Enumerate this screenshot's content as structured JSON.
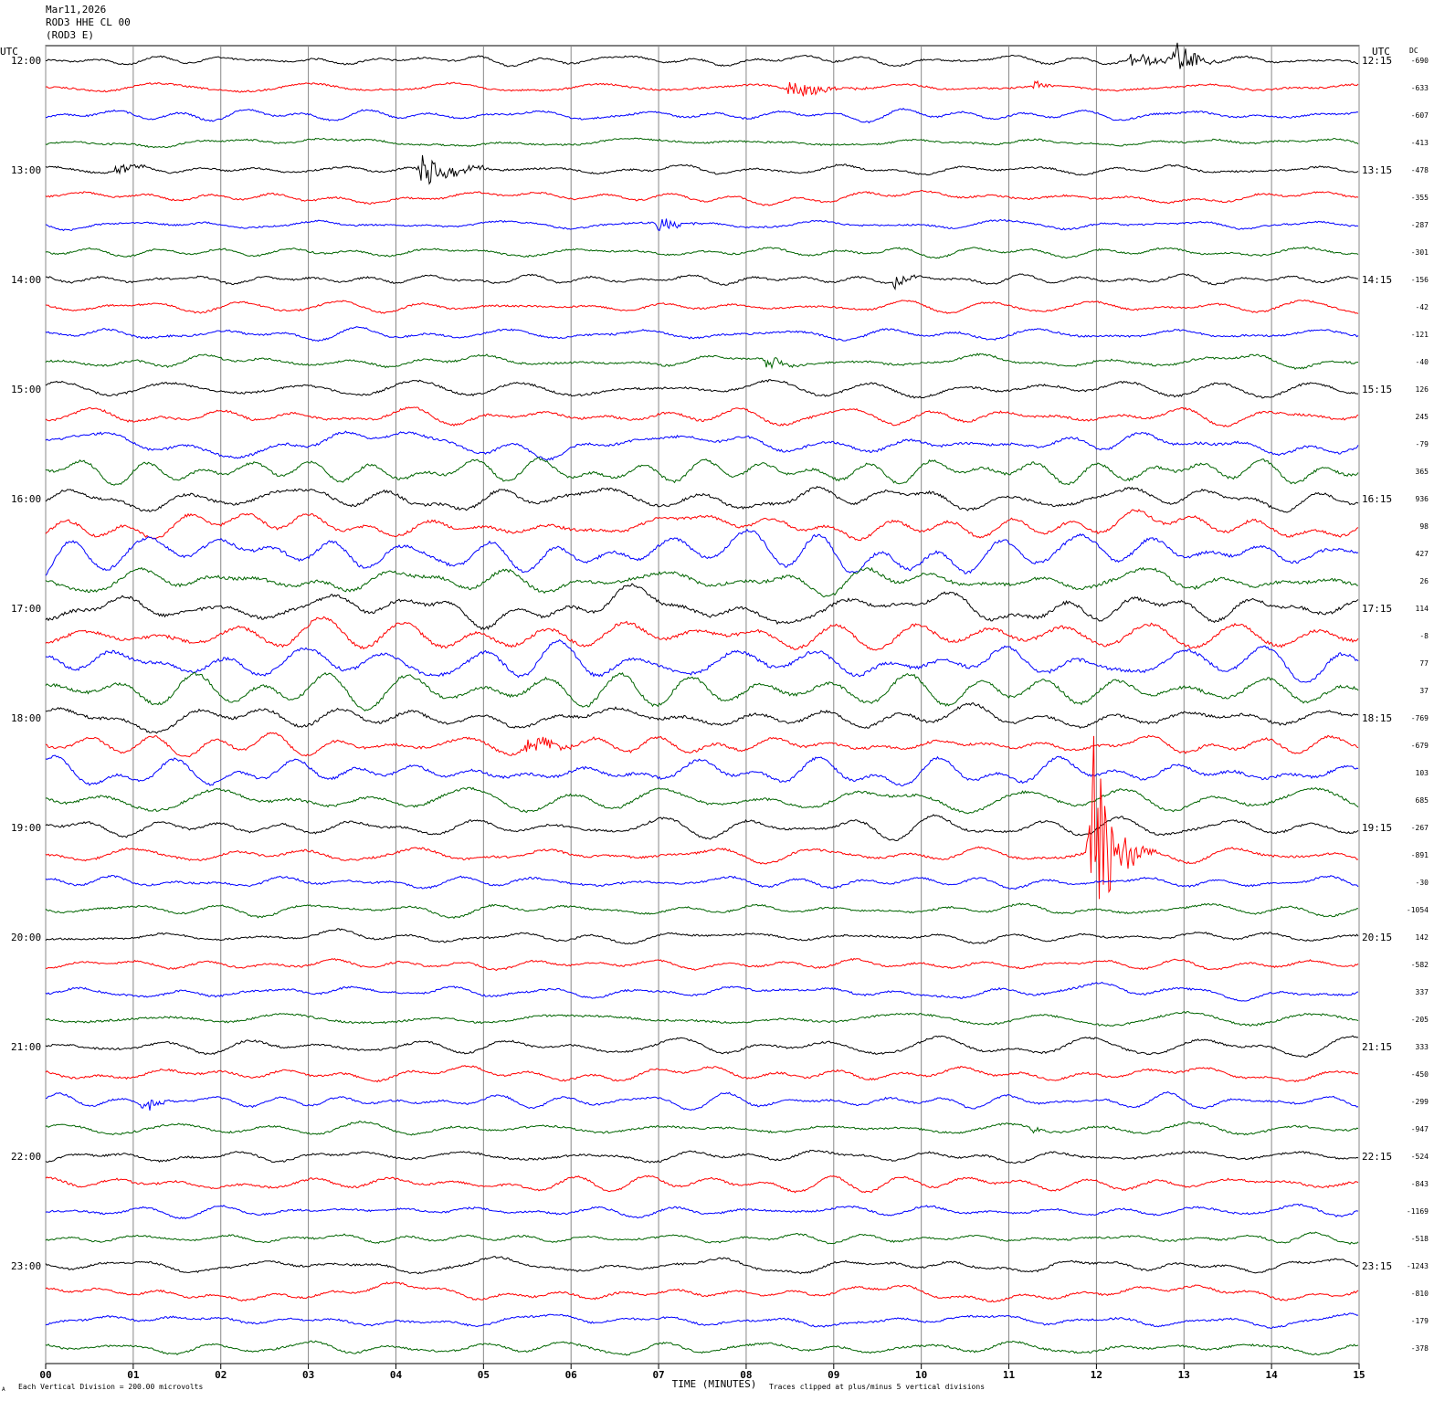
{
  "header": {
    "date": "Mar11,2026",
    "station": "ROD3 HHE CL 00",
    "station_alt": "(ROD3 E)"
  },
  "labels": {
    "utc_left": "UTC",
    "utc_right": "UTC",
    "dc": "DC",
    "xlabel": "TIME (MINUTES)",
    "scale_note": "Each Vertical Division =  200.00 microvolts",
    "clip_note": "Traces clipped at plus/minus 5 vertical divisions",
    "corner_mark": "A"
  },
  "chart_data": {
    "type": "line",
    "title": "",
    "xlabel": "TIME (MINUTES)",
    "ylabel": "",
    "xlim": [
      0,
      15
    ],
    "x_ticks": [
      "00",
      "01",
      "02",
      "03",
      "04",
      "05",
      "06",
      "07",
      "08",
      "09",
      "10",
      "11",
      "12",
      "13",
      "14",
      "15"
    ],
    "grid": "vertical lines each minute",
    "trace_colors": [
      "#000000",
      "#ff0000",
      "#0000ff",
      "#006400"
    ],
    "left_hour_labels": [
      "12:00",
      "13:00",
      "14:00",
      "15:00",
      "16:00",
      "17:00",
      "18:00",
      "19:00",
      "20:00",
      "21:00",
      "22:00",
      "23:00"
    ],
    "right_hour_labels": [
      "12:15",
      "13:15",
      "14:15",
      "15:15",
      "16:15",
      "17:15",
      "18:15",
      "19:15",
      "20:15",
      "21:15",
      "22:15",
      "23:15"
    ],
    "dc_offsets": [
      "-690",
      "-633",
      "-607",
      "-413",
      "-478",
      "-355",
      "-287",
      "-301",
      "-156",
      "-42",
      "-121",
      "-40",
      "126",
      "245",
      "-79",
      "365",
      "936",
      "98",
      "427",
      "26",
      "114",
      "-8",
      "77",
      "37",
      "-769",
      "-679",
      "103",
      "685",
      "-267",
      "-891",
      "-30",
      "-1054",
      "142",
      "-582",
      "337",
      "-205",
      "333",
      "-450",
      "-299",
      "-947",
      "-524",
      "-843",
      "-1169",
      "-518",
      "-1243",
      "-810",
      "-179",
      "-378"
    ],
    "trace_amplitude": [
      1,
      1,
      1,
      1,
      1,
      1,
      1,
      1,
      1.2,
      1.2,
      1.4,
      1.6,
      1.8,
      2,
      2.5,
      2.8,
      3,
      3.2,
      3.5,
      3.8,
      4,
      4,
      4,
      3.6,
      3,
      2.6,
      2.8,
      2.6,
      2,
      1.8,
      1.5,
      1.3,
      1.2,
      1.2,
      1.4,
      1.6,
      1.6,
      1.4,
      1.4,
      1.4,
      1.5,
      1.8,
      1.4,
      1.2,
      1.5,
      1.5,
      1.5,
      1.5
    ],
    "events": [
      {
        "trace": 0,
        "x": 12.9,
        "amplitude": 22,
        "duration": 0.5
      },
      {
        "trace": 0,
        "x": 12.4,
        "amplitude": 8,
        "duration": 0.9
      },
      {
        "trace": 1,
        "x": 8.5,
        "amplitude": 12,
        "duration": 0.7
      },
      {
        "trace": 1,
        "x": 11.3,
        "amplitude": 6,
        "duration": 0.3
      },
      {
        "trace": 4,
        "x": 4.3,
        "amplitude": 18,
        "duration": 0.8
      },
      {
        "trace": 4,
        "x": 0.8,
        "amplitude": 8,
        "duration": 0.4
      },
      {
        "trace": 6,
        "x": 7.0,
        "amplitude": 10,
        "duration": 0.5
      },
      {
        "trace": 8,
        "x": 9.7,
        "amplitude": 8,
        "duration": 0.4
      },
      {
        "trace": 11,
        "x": 8.2,
        "amplitude": 12,
        "duration": 0.4
      },
      {
        "trace": 25,
        "x": 5.5,
        "amplitude": 10,
        "duration": 0.8
      },
      {
        "trace": 29,
        "x": 11.95,
        "amplitude": 140,
        "duration": 0.5
      },
      {
        "trace": 38,
        "x": 1.1,
        "amplitude": 10,
        "duration": 0.4
      },
      {
        "trace": 39,
        "x": 11.25,
        "amplitude": 12,
        "duration": 0.15
      }
    ]
  }
}
